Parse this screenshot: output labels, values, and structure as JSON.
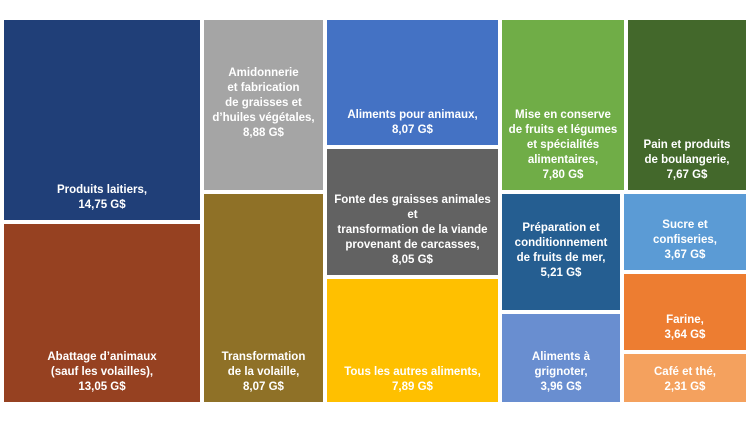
{
  "chart_data": {
    "type": "treemap",
    "unit": "G$",
    "items": [
      {
        "label": "Produits laitiers,",
        "value_text": "14,75 G$",
        "value": 14.75,
        "color": "#203f78"
      },
      {
        "label": "Abattage d’animaux\n(sauf les volailles),",
        "value_text": "13,05 G$",
        "value": 13.05,
        "color": "#964121"
      },
      {
        "label": "Amidonnerie\net fabrication\nde graisses et\nd’huiles végétales,",
        "value_text": "8,88 G$",
        "value": 8.88,
        "color": "#a5a5a5"
      },
      {
        "label": "Transformation\nde la volaille,",
        "value_text": "8,07 G$",
        "value": 8.07,
        "color": "#8f7127"
      },
      {
        "label": "Aliments pour animaux,",
        "value_text": "8,07 G$",
        "value": 8.07,
        "color": "#4472c4"
      },
      {
        "label": "Fonte des graisses animales et\ntransformation de la viande\nprovenant de carcasses,",
        "value_text": "8,05 G$",
        "value": 8.05,
        "color": "#626262"
      },
      {
        "label": "Tous les autres aliments,",
        "value_text": "7,89 G$",
        "value": 7.89,
        "color": "#ffc000"
      },
      {
        "label": "Mise en conserve\nde fruits et légumes\net spécialités\nalimentaires,",
        "value_text": "7,80 G$",
        "value": 7.8,
        "color": "#70ad47"
      },
      {
        "label": "Pain et produits\nde boulangerie,",
        "value_text": "7,67 G$",
        "value": 7.67,
        "color": "#43682b"
      },
      {
        "label": "Préparation et\nconditionnement\nde fruits de mer,",
        "value_text": "5,21 G$",
        "value": 5.21,
        "color": "#255e91"
      },
      {
        "label": "Aliments à grignoter,",
        "value_text": "3,96 G$",
        "value": 3.96,
        "color": "#698ed0"
      },
      {
        "label": "Sucre et confiseries,",
        "value_text": "3,67 G$",
        "value": 3.67,
        "color": "#5b9bd5"
      },
      {
        "label": "Farine,",
        "value_text": "3,64 G$",
        "value": 3.64,
        "color": "#ed7d31"
      },
      {
        "label": "Café et thé,",
        "value_text": "2,31 G$",
        "value": 2.31,
        "color": "#f4a15e"
      }
    ]
  }
}
